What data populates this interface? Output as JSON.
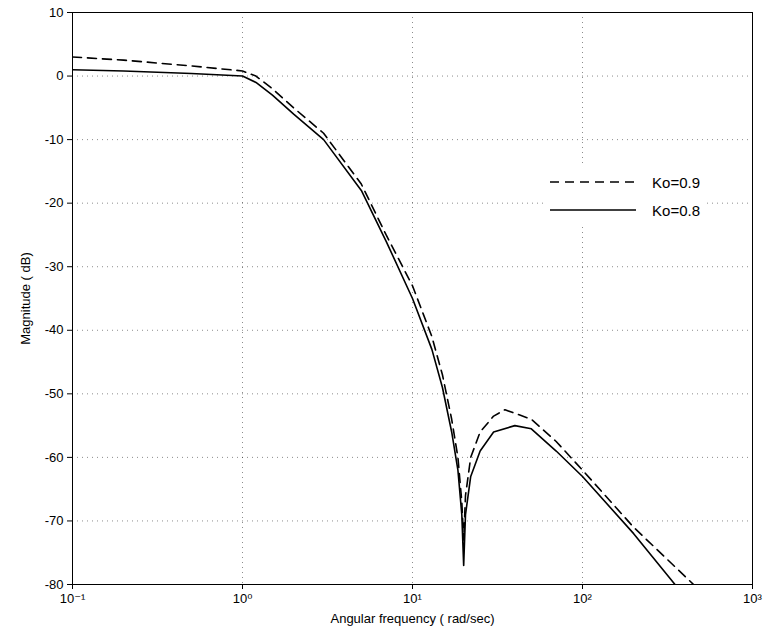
{
  "chart_data": {
    "type": "line",
    "xlabel": "Angular frequency ( rad/sec)",
    "ylabel": "Magnitude ( dB)",
    "log": "x",
    "grid": true,
    "legend": "upper right",
    "xlim": [
      0.1,
      1000
    ],
    "xticks": [
      {
        "value": 0.1,
        "label": "10⁻¹"
      },
      {
        "value": 1,
        "label": "10⁰"
      },
      {
        "value": 10,
        "label": "10¹"
      },
      {
        "value": 100,
        "label": "10²"
      },
      {
        "value": 1000,
        "label": "10³"
      }
    ],
    "ylim": [
      -80,
      10
    ],
    "yticks": [
      -80,
      -70,
      -60,
      -50,
      -40,
      -30,
      -20,
      -10,
      0,
      10
    ],
    "series": [
      {
        "name": "Ko=0.9",
        "color": "#000000",
        "line_style": "dashed",
        "x": [
          0.1,
          0.2,
          0.5,
          1,
          1.2,
          1.5,
          2,
          3,
          5,
          7,
          10,
          13,
          15,
          17,
          18.5,
          19.5,
          20,
          20.5,
          22,
          25,
          30,
          35,
          50,
          70,
          100,
          200,
          450
        ],
        "values": [
          3,
          2.5,
          1.6,
          0.8,
          0,
          -2,
          -5,
          -9,
          -17,
          -25,
          -33,
          -41,
          -47,
          -54,
          -60,
          -67,
          -73,
          -66,
          -60,
          -56,
          -53.5,
          -52.5,
          -54,
          -57.5,
          -62,
          -71,
          -80
        ]
      },
      {
        "name": "Ko=0.8",
        "color": "#000000",
        "line_style": "solid",
        "x": [
          0.1,
          0.2,
          0.5,
          1,
          1.2,
          1.5,
          2,
          3,
          5,
          7,
          10,
          13,
          15,
          17,
          18.5,
          19.5,
          20,
          20.5,
          22,
          25,
          30,
          40,
          50,
          70,
          100,
          200,
          350
        ],
        "values": [
          1,
          0.8,
          0.4,
          0,
          -1,
          -3,
          -6,
          -10,
          -18,
          -26,
          -35,
          -43,
          -49,
          -56,
          -62,
          -69,
          -77,
          -69,
          -63,
          -59,
          -56,
          -55,
          -55.5,
          -59,
          -63,
          -72,
          -80
        ]
      }
    ]
  }
}
